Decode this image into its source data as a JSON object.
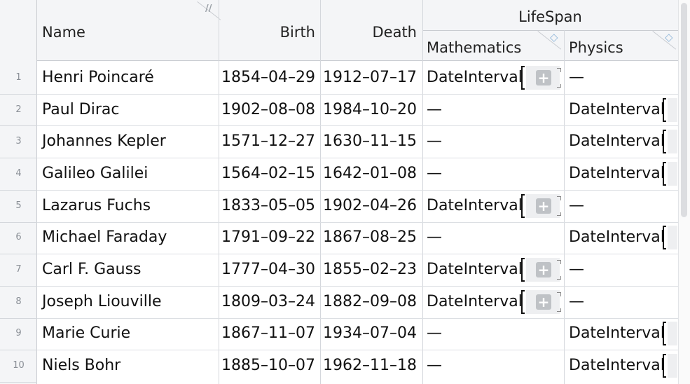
{
  "table": {
    "headers": {
      "name": "Name",
      "birth": "Birth",
      "death": "Death",
      "lifespan": "LifeSpan",
      "mathematics": "Mathematics",
      "physics": "Physics"
    },
    "dash": "—",
    "rows": [
      {
        "num": "1",
        "name": "Henri Poincaré",
        "birth": "1854–04–29",
        "death": "1912–07–17",
        "mathematics": "DateInterval",
        "physics": "—"
      },
      {
        "num": "2",
        "name": "Paul Dirac",
        "birth": "1902–08–08",
        "death": "1984–10–20",
        "mathematics": "—",
        "physics": "DateInterval"
      },
      {
        "num": "3",
        "name": "Johannes Kepler",
        "birth": "1571–12–27",
        "death": "1630–11–15",
        "mathematics": "—",
        "physics": "DateInterval"
      },
      {
        "num": "4",
        "name": "Galileo Galilei",
        "birth": "1564–02–15",
        "death": "1642–01–08",
        "mathematics": "—",
        "physics": "DateInterval"
      },
      {
        "num": "5",
        "name": "Lazarus Fuchs",
        "birth": "1833–05–05",
        "death": "1902–04–26",
        "mathematics": "DateInterval",
        "physics": "—"
      },
      {
        "num": "6",
        "name": "Michael Faraday",
        "birth": "1791–09–22",
        "death": "1867–08–25",
        "mathematics": "—",
        "physics": "DateInterval"
      },
      {
        "num": "7",
        "name": "Carl F. Gauss",
        "birth": "1777–04–30",
        "death": "1855–02–23",
        "mathematics": "DateInterval",
        "physics": "—"
      },
      {
        "num": "8",
        "name": "Joseph Liouville",
        "birth": "1809–03–24",
        "death": "1882–09–08",
        "mathematics": "DateInterval",
        "physics": "—"
      },
      {
        "num": "9",
        "name": "Marie Curie",
        "birth": "1867–11–07",
        "death": "1934–07–04",
        "mathematics": "—",
        "physics": "DateInterval"
      },
      {
        "num": "10",
        "name": "Niels Bohr",
        "birth": "1885–10–07",
        "death": "1962–11–18",
        "mathematics": "—",
        "physics": "DateInterval"
      }
    ]
  },
  "icons": {
    "column_grip": "grip-icon",
    "column_resize": "resize-corner-icon",
    "expand": "plus-icon"
  },
  "colors": {
    "header_bg": "#f4f5f7",
    "gridline": "#d4d7dc",
    "resize_icon": "#8fb6d9"
  }
}
